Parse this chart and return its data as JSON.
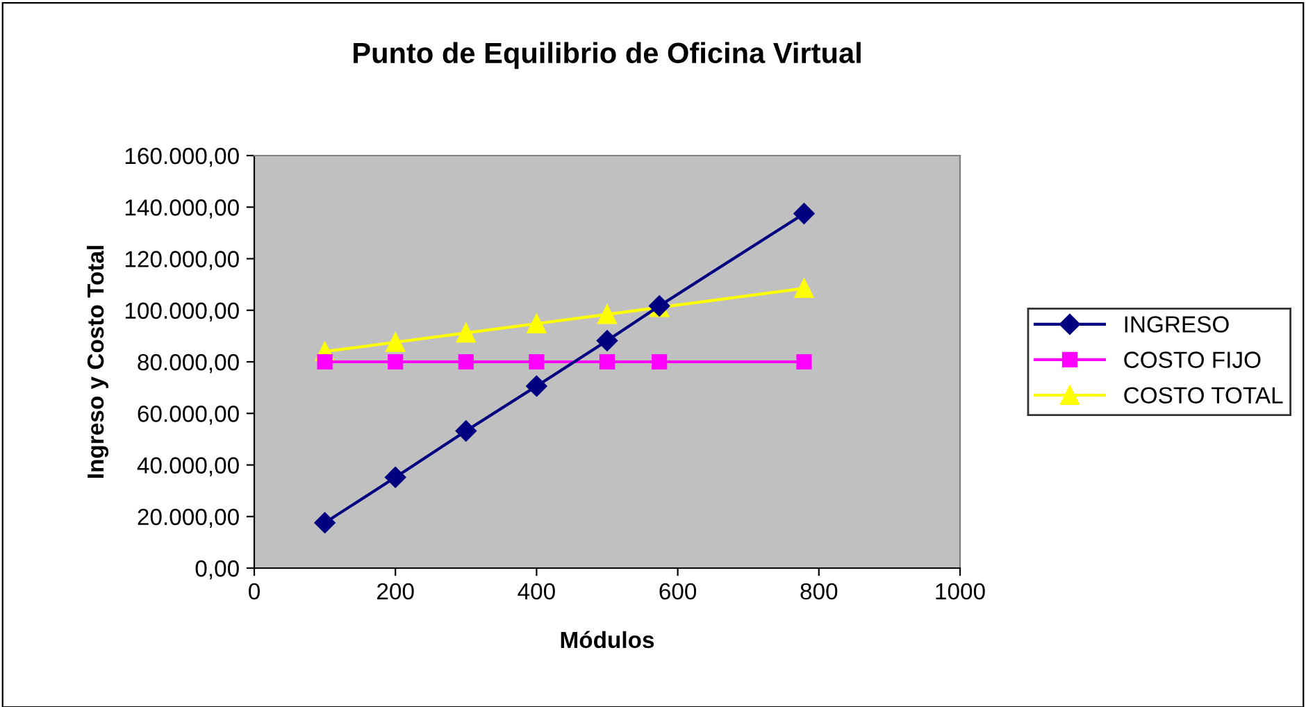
{
  "chart_data": {
    "type": "line",
    "title": "Punto de Equilibrio de Oficina Virtual",
    "xlabel": "Módulos",
    "ylabel": "Ingreso y Costo Total",
    "x": [
      100,
      200,
      300,
      400,
      500,
      574,
      779
    ],
    "series": [
      {
        "name": "INGRESO",
        "color": "#000080",
        "marker": "diamond",
        "values": [
          17600,
          35200,
          53200,
          70600,
          88200,
          101700,
          137500
        ]
      },
      {
        "name": "COSTO FIJO",
        "color": "#ff00ff",
        "marker": "square",
        "values": [
          80000,
          80000,
          80000,
          80000,
          80000,
          80000,
          80000
        ]
      },
      {
        "name": "COSTO TOTAL",
        "color": "#ffff00",
        "marker": "triangle",
        "values": [
          84000,
          87600,
          91200,
          94800,
          98400,
          101100,
          108500
        ]
      }
    ],
    "xlim": [
      0,
      1000
    ],
    "xticks": [
      0,
      200,
      400,
      600,
      800,
      1000
    ],
    "ylim": [
      0,
      160000
    ],
    "yticks": [
      {
        "value": 0,
        "label": "0,00"
      },
      {
        "value": 20000,
        "label": "20.000,00"
      },
      {
        "value": 40000,
        "label": "40.000,00"
      },
      {
        "value": 60000,
        "label": "60.000,00"
      },
      {
        "value": 80000,
        "label": "80.000,00"
      },
      {
        "value": 100000,
        "label": "100.000,00"
      },
      {
        "value": 120000,
        "label": "120.000,00"
      },
      {
        "value": 140000,
        "label": "140.000,00"
      },
      {
        "value": 160000,
        "label": "160.000,00"
      }
    ],
    "grid": false,
    "legend": "right",
    "line_style": "solid"
  }
}
